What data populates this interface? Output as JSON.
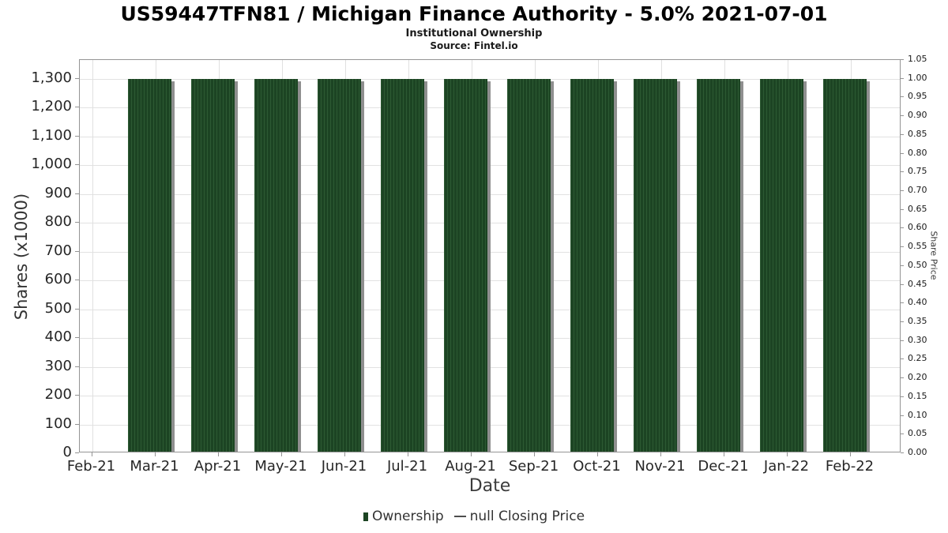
{
  "chart_data": {
    "type": "bar",
    "title": "US59447TFN81 / Michigan Finance Authority - 5.0% 2021-07-01",
    "subtitle": "Institutional Ownership",
    "source": "Source: Fintel.io",
    "xlabel": "Date",
    "ylabel_left": "Shares (x1000)",
    "ylabel_right": "Share Price",
    "grid": true,
    "legend_position": "bottom",
    "ylim_left": [
      0,
      1365
    ],
    "ylim_right": [
      0,
      1.05
    ],
    "x_ticks": [
      "Feb-21",
      "Mar-21",
      "Apr-21",
      "May-21",
      "Jun-21",
      "Jul-21",
      "Aug-21",
      "Sep-21",
      "Oct-21",
      "Nov-21",
      "Dec-21",
      "Jan-22",
      "Feb-22"
    ],
    "y_left_ticks": [
      {
        "value": 0,
        "label": "0"
      },
      {
        "value": 100,
        "label": "100"
      },
      {
        "value": 200,
        "label": "200"
      },
      {
        "value": 300,
        "label": "300"
      },
      {
        "value": 400,
        "label": "400"
      },
      {
        "value": 500,
        "label": "500"
      },
      {
        "value": 600,
        "label": "600"
      },
      {
        "value": 700,
        "label": "700"
      },
      {
        "value": 800,
        "label": "800"
      },
      {
        "value": 900,
        "label": "900"
      },
      {
        "value": 1000,
        "label": "1,000"
      },
      {
        "value": 1100,
        "label": "1,100"
      },
      {
        "value": 1200,
        "label": "1,200"
      },
      {
        "value": 1300,
        "label": "1,300"
      }
    ],
    "y_right_ticks": [
      "0.00",
      "0.05",
      "0.10",
      "0.15",
      "0.20",
      "0.25",
      "0.30",
      "0.35",
      "0.40",
      "0.45",
      "0.50",
      "0.55",
      "0.60",
      "0.65",
      "0.70",
      "0.75",
      "0.80",
      "0.85",
      "0.90",
      "0.95",
      "1.00",
      "1.05"
    ],
    "series": [
      {
        "name": "Ownership",
        "type": "bar",
        "color": "#1c4423",
        "stripe_color": "#2d5a33",
        "shadow_color": "#8f8f8f",
        "categories": [
          "Mar-21",
          "Apr-21",
          "May-21",
          "Jun-21",
          "Jul-21",
          "Aug-21",
          "Sep-21",
          "Oct-21",
          "Nov-21",
          "Dec-21",
          "Jan-22",
          "Feb-22"
        ],
        "values": [
          1300,
          1300,
          1300,
          1300,
          1300,
          1300,
          1300,
          1300,
          1300,
          1300,
          1300,
          1300
        ]
      },
      {
        "name": "null Closing Price",
        "type": "line",
        "color": "#4d4d4d",
        "values": []
      }
    ]
  }
}
